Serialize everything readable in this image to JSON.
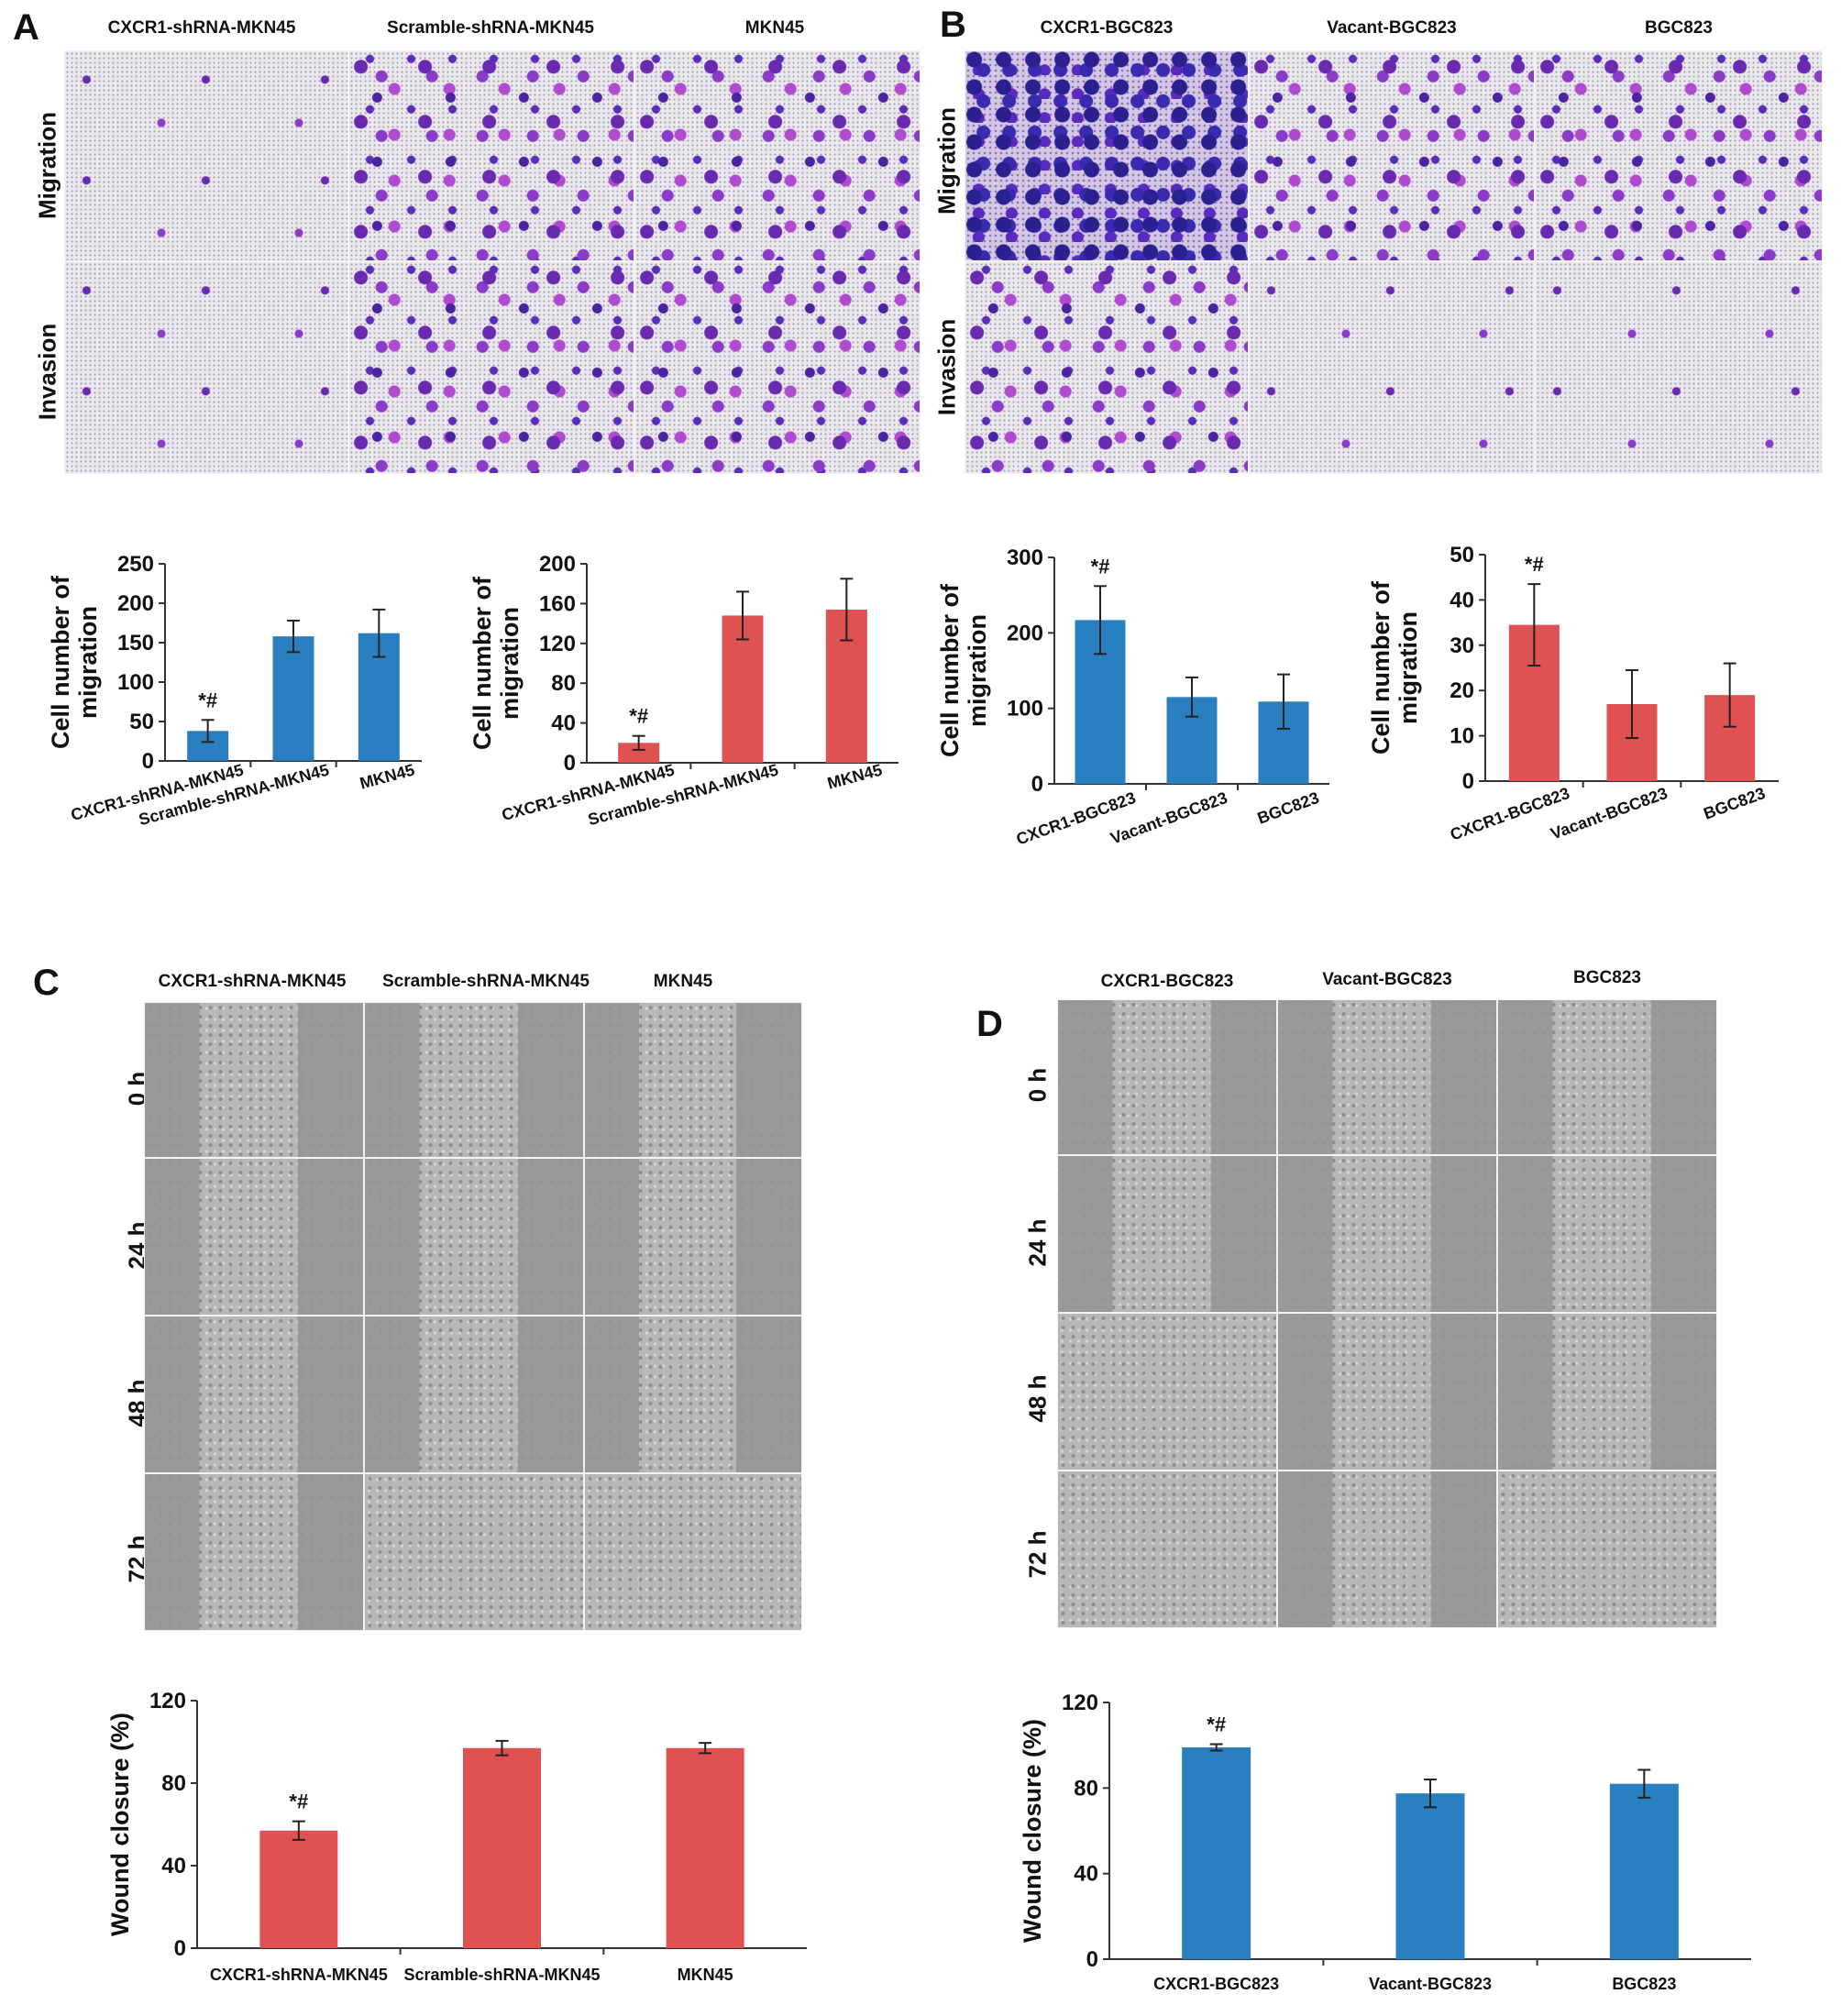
{
  "panels": {
    "A": {
      "letter": "A",
      "columns": [
        "CXCR1-shRNA-MKN45",
        "Scramble-shRNA-MKN45",
        "MKN45"
      ],
      "rows": [
        "Migration",
        "Invasion"
      ]
    },
    "B": {
      "letter": "B",
      "columns": [
        "CXCR1-BGC823",
        "Vacant-BGC823",
        "BGC823"
      ],
      "rows": [
        "Migration",
        "Invasion"
      ]
    },
    "C": {
      "letter": "C",
      "columns": [
        "CXCR1-shRNA-MKN45",
        "Scramble-shRNA-MKN45",
        "MKN45"
      ],
      "rows": [
        "0 h",
        "24 h",
        "48 h",
        "72 h"
      ]
    },
    "D": {
      "letter": "D",
      "columns": [
        "CXCR1-BGC823",
        "Vacant-BGC823",
        "BGC823"
      ],
      "rows": [
        "0 h",
        "24 h",
        "48 h",
        "72 h"
      ]
    }
  },
  "chart_data": [
    {
      "type": "bar",
      "panel": "A",
      "categories": [
        "CXCR1-shRNA-MKN45",
        "Scramble-shRNA-MKN45",
        "MKN45"
      ],
      "values": [
        38,
        158,
        162
      ],
      "errors": [
        14,
        20,
        30
      ],
      "annotations": [
        "*#",
        "",
        ""
      ],
      "ylabel": "Cell number of\nmigration",
      "ylim": [
        0,
        250
      ],
      "yticks": [
        0,
        50,
        100,
        150,
        200,
        250
      ],
      "color": "#2a7fc1",
      "grid": false
    },
    {
      "type": "bar",
      "panel": "A",
      "categories": [
        "CXCR1-shRNA-MKN45",
        "Scramble-shRNA-MKN45",
        "MKN45"
      ],
      "values": [
        20,
        148,
        154
      ],
      "errors": [
        7,
        24,
        31
      ],
      "annotations": [
        "*#",
        "",
        ""
      ],
      "ylabel": "Cell number of\nmigration",
      "ylim": [
        0,
        200
      ],
      "yticks": [
        0,
        40,
        80,
        120,
        160,
        200
      ],
      "color": "#e05252",
      "grid": false
    },
    {
      "type": "bar",
      "panel": "B",
      "categories": [
        "CXCR1-BGC823",
        "Vacant-BGC823",
        "BGC823"
      ],
      "values": [
        217,
        115,
        109
      ],
      "errors": [
        45,
        26,
        36
      ],
      "annotations": [
        "*#",
        "",
        ""
      ],
      "ylabel": "Cell number of\nmigration",
      "ylim": [
        0,
        300
      ],
      "yticks": [
        0,
        100,
        200,
        300
      ],
      "color": "#2a7fc1",
      "grid": false
    },
    {
      "type": "bar",
      "panel": "B",
      "categories": [
        "CXCR1-BGC823",
        "Vacant-BGC823",
        "BGC823"
      ],
      "values": [
        34.5,
        17,
        19
      ],
      "errors": [
        9,
        7.5,
        7
      ],
      "annotations": [
        "*#",
        "",
        ""
      ],
      "ylabel": "Cell number of\nmigration",
      "ylim": [
        0,
        50
      ],
      "yticks": [
        0,
        10,
        20,
        30,
        40,
        50
      ],
      "color": "#e05252",
      "grid": false
    },
    {
      "type": "bar",
      "panel": "C",
      "categories": [
        "CXCR1-shRNA-MKN45",
        "Scramble-shRNA-MKN45",
        "MKN45"
      ],
      "values": [
        57,
        97,
        97
      ],
      "errors": [
        4.5,
        3.5,
        2.5
      ],
      "annotations": [
        "*#",
        "",
        ""
      ],
      "ylabel": "Wound closure (%)",
      "ylim": [
        0,
        120
      ],
      "yticks": [
        0,
        40,
        80,
        120
      ],
      "color": "#e05252",
      "grid": false
    },
    {
      "type": "bar",
      "panel": "D",
      "categories": [
        "CXCR1-BGC823",
        "Vacant-BGC823",
        "BGC823"
      ],
      "values": [
        99,
        77.5,
        82
      ],
      "errors": [
        1.5,
        6.5,
        6.5
      ],
      "annotations": [
        "*#",
        "",
        ""
      ],
      "ylabel": "Wound closure (%)",
      "ylim": [
        0,
        120
      ],
      "yticks": [
        0,
        40,
        80,
        120
      ],
      "color": "#2a7fc1",
      "grid": false
    }
  ]
}
